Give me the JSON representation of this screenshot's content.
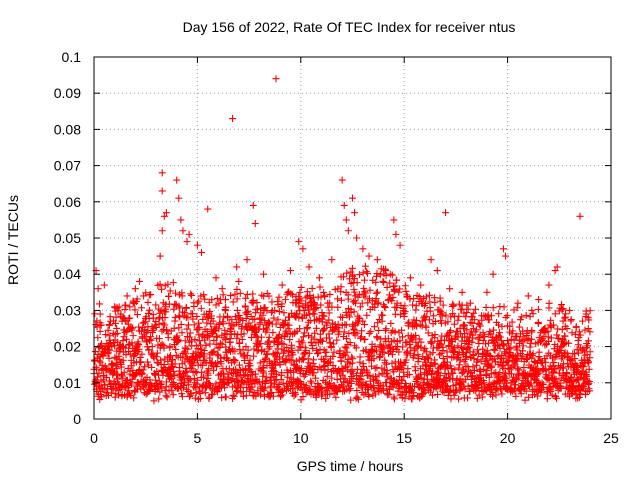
{
  "chart_data": {
    "type": "scatter",
    "title": "Day 156 of 2022, Rate Of TEC Index for receiver ntus",
    "xlabel": "GPS time / hours",
    "ylabel": "ROTI / TECUs",
    "xlim": [
      0,
      25
    ],
    "ylim": [
      0,
      0.1
    ],
    "xticks": [
      "0",
      "5",
      "10",
      "15",
      "20",
      "25"
    ],
    "yticks": [
      "0",
      "0.01",
      "0.02",
      "0.03",
      "0.04",
      "0.05",
      "0.06",
      "0.07",
      "0.08",
      "0.09",
      "0.1"
    ],
    "grid": true,
    "marker": "+",
    "color": "#ff0000",
    "series": [
      {
        "name": "ROTI",
        "points": [
          [
            0.1,
            0.041
          ],
          [
            0.2,
            0.036
          ],
          [
            0.3,
            0.029
          ],
          [
            0.5,
            0.037
          ],
          [
            0.8,
            0.027
          ],
          [
            1.0,
            0.031
          ],
          [
            1.3,
            0.029
          ],
          [
            1.6,
            0.034
          ],
          [
            2.0,
            0.036
          ],
          [
            2.4,
            0.034
          ],
          [
            2.2,
            0.038
          ],
          [
            3.3,
            0.068
          ],
          [
            3.3,
            0.063
          ],
          [
            3.4,
            0.056
          ],
          [
            3.5,
            0.057
          ],
          [
            3.3,
            0.052
          ],
          [
            3.2,
            0.045
          ],
          [
            4.0,
            0.066
          ],
          [
            4.1,
            0.061
          ],
          [
            4.2,
            0.055
          ],
          [
            4.3,
            0.052
          ],
          [
            4.5,
            0.049
          ],
          [
            4.6,
            0.051
          ],
          [
            5.0,
            0.048
          ],
          [
            5.2,
            0.046
          ],
          [
            5.5,
            0.058
          ],
          [
            5.9,
            0.039
          ],
          [
            6.2,
            0.036
          ],
          [
            6.7,
            0.083
          ],
          [
            6.9,
            0.042
          ],
          [
            7.0,
            0.038
          ],
          [
            7.4,
            0.044
          ],
          [
            7.7,
            0.059
          ],
          [
            7.8,
            0.054
          ],
          [
            8.2,
            0.04
          ],
          [
            8.8,
            0.094
          ],
          [
            9.1,
            0.037
          ],
          [
            9.5,
            0.041
          ],
          [
            9.9,
            0.049
          ],
          [
            10.1,
            0.047
          ],
          [
            10.4,
            0.042
          ],
          [
            10.9,
            0.039
          ],
          [
            11.5,
            0.044
          ],
          [
            12.0,
            0.066
          ],
          [
            12.1,
            0.059
          ],
          [
            12.2,
            0.055
          ],
          [
            12.3,
            0.052
          ],
          [
            12.5,
            0.061
          ],
          [
            12.6,
            0.057
          ],
          [
            12.7,
            0.05
          ],
          [
            13.0,
            0.047
          ],
          [
            13.3,
            0.045
          ],
          [
            13.7,
            0.044
          ],
          [
            14.1,
            0.041
          ],
          [
            14.5,
            0.055
          ],
          [
            14.6,
            0.051
          ],
          [
            14.8,
            0.048
          ],
          [
            15.3,
            0.039
          ],
          [
            15.8,
            0.037
          ],
          [
            16.3,
            0.044
          ],
          [
            16.6,
            0.041
          ],
          [
            17.0,
            0.057
          ],
          [
            17.2,
            0.036
          ],
          [
            17.8,
            0.035
          ],
          [
            18.2,
            0.032
          ],
          [
            19.0,
            0.035
          ],
          [
            19.3,
            0.04
          ],
          [
            19.8,
            0.047
          ],
          [
            19.9,
            0.045
          ],
          [
            20.5,
            0.032
          ],
          [
            21.0,
            0.034
          ],
          [
            21.5,
            0.033
          ],
          [
            22.0,
            0.037
          ],
          [
            22.4,
            0.042
          ],
          [
            22.3,
            0.041
          ],
          [
            23.0,
            0.03
          ],
          [
            23.5,
            0.056
          ],
          [
            23.8,
            0.029
          ],
          [
            23.9,
            0.028
          ]
        ],
        "dense_band": [
          [
            0,
            0.027
          ],
          [
            0.5,
            0.024
          ],
          [
            1,
            0.024
          ],
          [
            1.5,
            0.025
          ],
          [
            2,
            0.026
          ],
          [
            2.5,
            0.028
          ],
          [
            3,
            0.03
          ],
          [
            3.5,
            0.031
          ],
          [
            4,
            0.031
          ],
          [
            4.5,
            0.029
          ],
          [
            5,
            0.028
          ],
          [
            5.5,
            0.028
          ],
          [
            6,
            0.027
          ],
          [
            6.5,
            0.029
          ],
          [
            7,
            0.029
          ],
          [
            7.5,
            0.028
          ],
          [
            8,
            0.028
          ],
          [
            8.5,
            0.028
          ],
          [
            9,
            0.027
          ],
          [
            9.5,
            0.029
          ],
          [
            10,
            0.03
          ],
          [
            10.5,
            0.029
          ],
          [
            11,
            0.03
          ],
          [
            11.5,
            0.031
          ],
          [
            12,
            0.033
          ],
          [
            12.5,
            0.035
          ],
          [
            13,
            0.036
          ],
          [
            13.5,
            0.036
          ],
          [
            14,
            0.035
          ],
          [
            14.5,
            0.033
          ],
          [
            15,
            0.031
          ],
          [
            15.5,
            0.029
          ],
          [
            16,
            0.028
          ],
          [
            16.5,
            0.027
          ],
          [
            17,
            0.026
          ],
          [
            17.5,
            0.025
          ],
          [
            18,
            0.025
          ],
          [
            18.5,
            0.024
          ],
          [
            19,
            0.024
          ],
          [
            19.5,
            0.025
          ],
          [
            20,
            0.025
          ],
          [
            20.5,
            0.024
          ],
          [
            21,
            0.024
          ],
          [
            21.5,
            0.024
          ],
          [
            22,
            0.026
          ],
          [
            22.5,
            0.026
          ],
          [
            23,
            0.021
          ],
          [
            23.5,
            0.02
          ],
          [
            24,
            0.025
          ]
        ]
      }
    ]
  }
}
